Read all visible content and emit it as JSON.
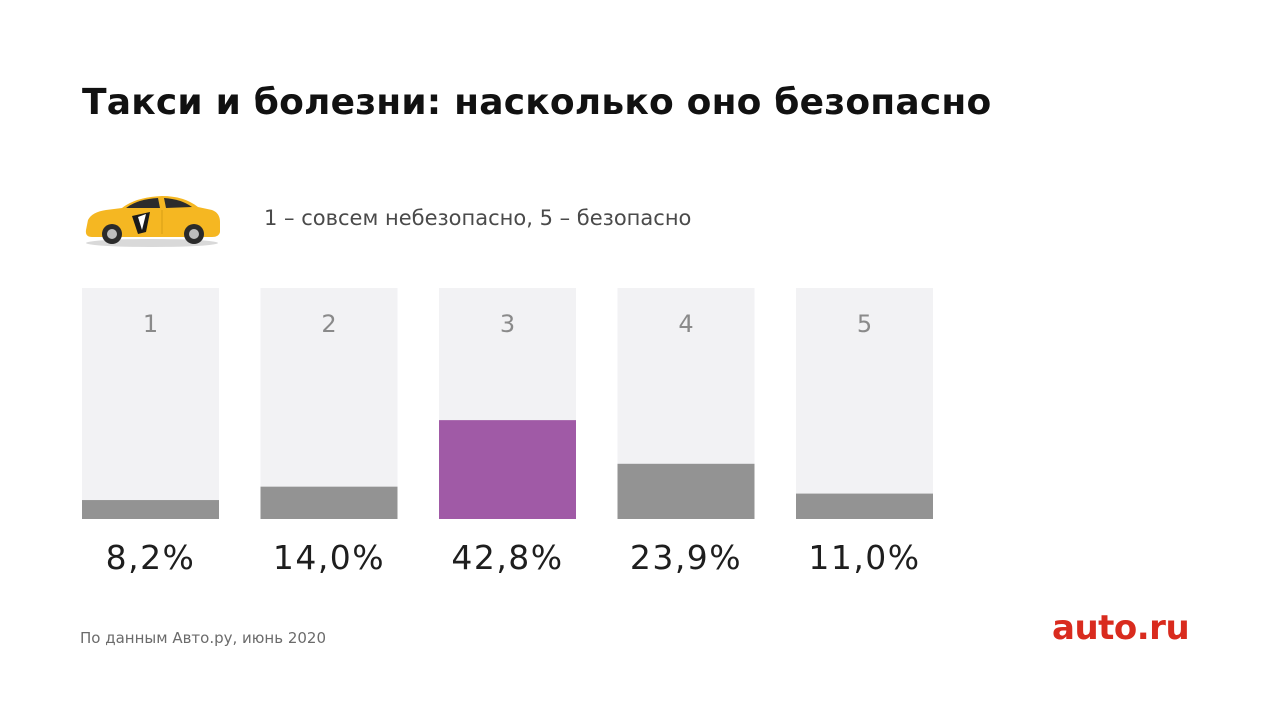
{
  "title": "Такси и болезни: насколько оно безопасно",
  "scale_note": "1 – совсем небезопасно, 5 – безопасно",
  "source": "По данным Авто.ру, июнь 2020",
  "logo": "auto.ru",
  "icons": {
    "car": "taxi-car-icon"
  },
  "colors": {
    "track": "#f2f2f4",
    "bar": "#939393",
    "highlight": "#a05aa6",
    "logo": "#d92b1e"
  },
  "chart_data": {
    "type": "bar",
    "categories": [
      "1",
      "2",
      "3",
      "4",
      "5"
    ],
    "values": [
      8.2,
      14.0,
      42.8,
      23.9,
      11.0
    ],
    "value_labels": [
      "8,2%",
      "14,0%",
      "42,8%",
      "23,9%",
      "11,0%"
    ],
    "highlight_category": "3",
    "ylim": [
      0,
      100
    ],
    "grid": false,
    "title": "",
    "xlabel": "",
    "ylabel": ""
  }
}
